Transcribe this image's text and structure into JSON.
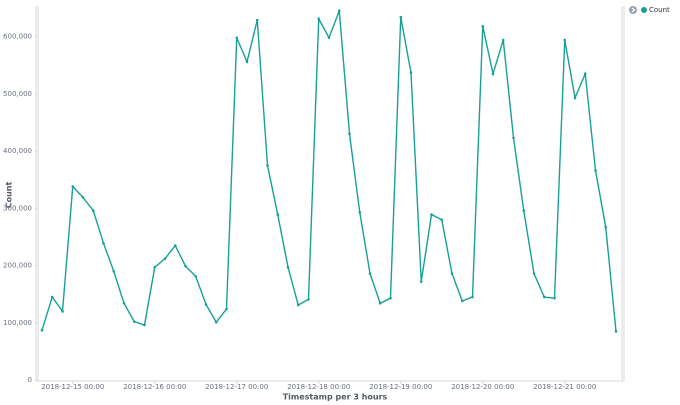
{
  "chart_data": {
    "type": "line",
    "x_label": "Timestamp per 3 hours",
    "y_label": "Count",
    "x": [
      "2018-12-14 15:00",
      "2018-12-14 18:00",
      "2018-12-14 21:00",
      "2018-12-15 00:00",
      "2018-12-15 03:00",
      "2018-12-15 06:00",
      "2018-12-15 09:00",
      "2018-12-15 12:00",
      "2018-12-15 15:00",
      "2018-12-15 18:00",
      "2018-12-15 21:00",
      "2018-12-16 00:00",
      "2018-12-16 03:00",
      "2018-12-16 06:00",
      "2018-12-16 09:00",
      "2018-12-16 12:00",
      "2018-12-16 15:00",
      "2018-12-16 18:00",
      "2018-12-16 21:00",
      "2018-12-17 00:00",
      "2018-12-17 03:00",
      "2018-12-17 06:00",
      "2018-12-17 09:00",
      "2018-12-17 12:00",
      "2018-12-17 15:00",
      "2018-12-17 18:00",
      "2018-12-17 21:00",
      "2018-12-18 00:00",
      "2018-12-18 03:00",
      "2018-12-18 06:00",
      "2018-12-18 09:00",
      "2018-12-18 12:00",
      "2018-12-18 15:00",
      "2018-12-18 18:00",
      "2018-12-18 21:00",
      "2018-12-19 00:00",
      "2018-12-19 03:00",
      "2018-12-19 06:00",
      "2018-12-19 09:00",
      "2018-12-19 12:00",
      "2018-12-19 15:00",
      "2018-12-19 18:00",
      "2018-12-19 21:00",
      "2018-12-20 00:00",
      "2018-12-20 03:00",
      "2018-12-20 06:00",
      "2018-12-20 09:00",
      "2018-12-20 12:00",
      "2018-12-20 15:00",
      "2018-12-20 18:00",
      "2018-12-20 21:00",
      "2018-12-21 00:00",
      "2018-12-21 03:00",
      "2018-12-21 06:00",
      "2018-12-21 09:00",
      "2018-12-21 12:00",
      "2018-12-21 15:00"
    ],
    "series": [
      {
        "name": "Count",
        "color": "#17a096",
        "values": [
          87000,
          145000,
          120000,
          338000,
          319000,
          296000,
          239000,
          190000,
          134000,
          102000,
          96000,
          197000,
          212000,
          235000,
          199000,
          181000,
          132000,
          101000,
          124000,
          598000,
          556000,
          629000,
          375000,
          289000,
          197000,
          131000,
          141000,
          631000,
          598000,
          645000,
          430000,
          293000,
          186000,
          134000,
          143000,
          634000,
          537000,
          172000,
          289000,
          280000,
          186000,
          138000,
          145000,
          618000,
          535000,
          594000,
          423000,
          296000,
          186000,
          145000,
          143000,
          594000,
          493000,
          535000,
          366000,
          267000,
          85000
        ]
      }
    ],
    "xticks": [
      "2018-12-15 00:00",
      "2018-12-16 00:00",
      "2018-12-17 00:00",
      "2018-12-18 00:00",
      "2018-12-19 00:00",
      "2018-12-20 00:00",
      "2018-12-21 00:00"
    ],
    "ylim": [
      0,
      650000
    ],
    "yticks": [
      0,
      {
        "value": 100000,
        "label": "100,000"
      },
      {
        "value": 200000,
        "label": "200,000"
      },
      {
        "value": 300000,
        "label": "300,000"
      },
      {
        "value": 400000,
        "label": "400,000"
      },
      {
        "value": 500000,
        "label": "500,000"
      },
      {
        "value": 600000,
        "label": "600,000"
      }
    ],
    "grid": false,
    "legend": "top-right"
  }
}
